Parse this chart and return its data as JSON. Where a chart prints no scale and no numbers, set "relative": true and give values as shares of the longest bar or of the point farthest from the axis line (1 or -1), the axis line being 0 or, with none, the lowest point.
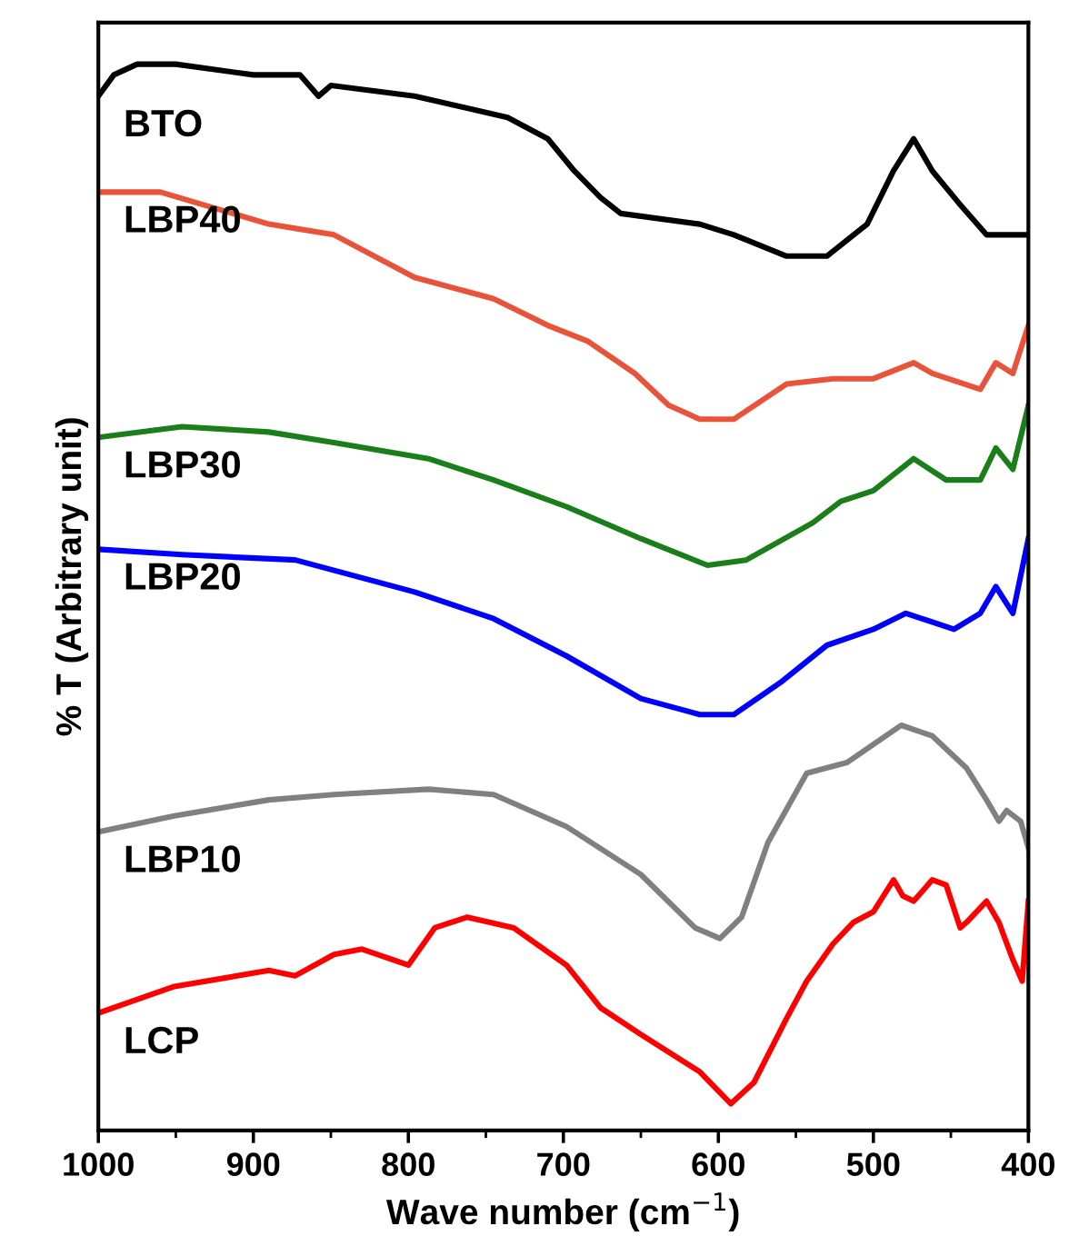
{
  "chart_data": {
    "type": "line",
    "relative": true,
    "xlabel": "Wave number (cm$^{−1}$)",
    "ylabel": "% T (Arbitrary unit)",
    "xlim": [
      1000,
      400
    ],
    "xticks": [
      1000,
      900,
      800,
      700,
      600,
      500,
      400
    ],
    "tick_labels": "x",
    "grid": false,
    "legend": false,
    "marker": "none",
    "line_style": "solid",
    "series": [
      {
        "name": "BTO",
        "color": "#000000",
        "x": [
          1000,
          990,
          975,
          950,
          900,
          870,
          858,
          850,
          796,
          736,
          710,
          693,
          676,
          663,
          612,
          590,
          556,
          530,
          504,
          487,
          474,
          462,
          445,
          427,
          415,
          400
        ],
        "values": [
          0.97,
          0.99,
          1.0,
          1.0,
          0.99,
          0.99,
          0.97,
          0.98,
          0.97,
          0.95,
          0.93,
          0.9,
          0.875,
          0.86,
          0.85,
          0.84,
          0.82,
          0.82,
          0.85,
          0.9,
          0.93,
          0.9,
          0.87,
          0.84,
          0.84,
          0.84
        ]
      },
      {
        "name": "LBP40",
        "color": "#e8533a",
        "x": [
          1000,
          960,
          890,
          848,
          796,
          745,
          710,
          684,
          654,
          632,
          612,
          590,
          556,
          526,
          500,
          474,
          462,
          431,
          421,
          410,
          400
        ],
        "values": [
          0.88,
          0.88,
          0.85,
          0.84,
          0.8,
          0.78,
          0.755,
          0.74,
          0.71,
          0.68,
          0.667,
          0.667,
          0.7,
          0.705,
          0.705,
          0.72,
          0.71,
          0.695,
          0.72,
          0.71,
          0.755
        ]
      },
      {
        "name": "LBP30",
        "color": "#1a7f1a",
        "x": [
          1000,
          946,
          890,
          848,
          787,
          745,
          698,
          650,
          607,
          582,
          539,
          521,
          500,
          474,
          453,
          431,
          421,
          410,
          400
        ],
        "values": [
          0.65,
          0.66,
          0.655,
          0.645,
          0.63,
          0.61,
          0.585,
          0.555,
          0.53,
          0.535,
          0.57,
          0.59,
          0.6,
          0.63,
          0.61,
          0.61,
          0.64,
          0.62,
          0.68
        ]
      },
      {
        "name": "LBP20",
        "color": "#0000ff",
        "x": [
          1000,
          946,
          873,
          796,
          745,
          698,
          650,
          612,
          590,
          560,
          530,
          500,
          479,
          448,
          431,
          421,
          410,
          400
        ],
        "values": [
          0.545,
          0.54,
          0.535,
          0.505,
          0.48,
          0.445,
          0.405,
          0.39,
          0.39,
          0.42,
          0.455,
          0.47,
          0.485,
          0.47,
          0.485,
          0.51,
          0.485,
          0.555
        ]
      },
      {
        "name": "LBP10",
        "color": "#808080",
        "x": [
          1000,
          951,
          890,
          848,
          787,
          745,
          698,
          650,
          615,
          599,
          585,
          568,
          543,
          517,
          482,
          462,
          440,
          427,
          419,
          414,
          405,
          400
        ],
        "values": [
          0.28,
          0.295,
          0.31,
          0.315,
          0.32,
          0.315,
          0.285,
          0.24,
          0.19,
          0.18,
          0.2,
          0.27,
          0.335,
          0.345,
          0.38,
          0.37,
          0.34,
          0.31,
          0.29,
          0.3,
          0.29,
          0.265
        ]
      },
      {
        "name": "LCP",
        "color": "#ff0000",
        "x": [
          1000,
          951,
          890,
          873,
          848,
          830,
          800,
          783,
          762,
          732,
          698,
          676,
          650,
          612,
          592,
          577,
          556,
          543,
          526,
          513,
          500,
          487,
          481,
          474,
          462,
          453,
          444,
          440,
          427,
          419,
          410,
          404,
          400
        ],
        "values": [
          0.11,
          0.135,
          0.15,
          0.145,
          0.165,
          0.17,
          0.155,
          0.19,
          0.2,
          0.19,
          0.155,
          0.115,
          0.09,
          0.055,
          0.025,
          0.045,
          0.105,
          0.14,
          0.175,
          0.195,
          0.205,
          0.235,
          0.22,
          0.215,
          0.235,
          0.23,
          0.19,
          0.195,
          0.215,
          0.195,
          0.16,
          0.14,
          0.215
        ]
      }
    ]
  }
}
